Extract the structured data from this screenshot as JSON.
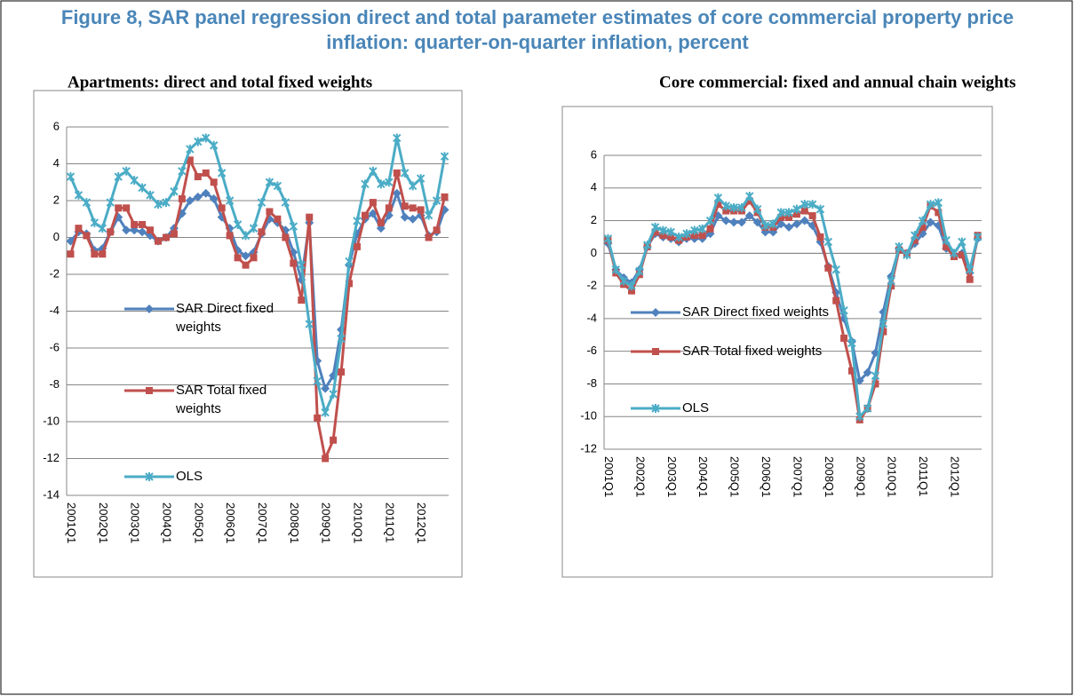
{
  "title": "Figure 8, SAR panel regression direct and total parameter estimates of core commercial property price inflation: quarter-on-quarter inflation, percent",
  "chart_data": [
    {
      "type": "line",
      "title": "Apartments: direct and total fixed weights",
      "categories": [
        "2001Q1",
        null,
        null,
        null,
        "2002Q1",
        null,
        null,
        null,
        "2003Q1",
        null,
        null,
        null,
        "2004Q1",
        null,
        null,
        null,
        "2005Q1",
        null,
        null,
        null,
        "2006Q1",
        null,
        null,
        null,
        "2007Q1",
        null,
        null,
        null,
        "2008Q1",
        null,
        null,
        null,
        "2009Q1",
        null,
        null,
        null,
        "2010Q1",
        null,
        null,
        null,
        "2011Q1",
        null,
        null,
        null,
        "2012Q1",
        null,
        null,
        null
      ],
      "ylim": [
        -14,
        6
      ],
      "yticks": [
        -14,
        -12,
        -10,
        -8,
        -6,
        -4,
        -2,
        0,
        2,
        4,
        6
      ],
      "grid": true,
      "series": [
        {
          "name": "SAR Direct fixed weights",
          "color": "#4f81bd",
          "marker": "diamond",
          "values": [
            -0.2,
            0.3,
            0.2,
            -0.7,
            -0.6,
            0.3,
            1.1,
            0.4,
            0.4,
            0.3,
            0.1,
            -0.2,
            0.0,
            0.5,
            1.3,
            2.0,
            2.2,
            2.4,
            2.1,
            1.1,
            0.5,
            -0.7,
            -1.0,
            -0.8,
            0.2,
            1.0,
            0.8,
            0.4,
            -0.8,
            -2.3,
            0.8,
            -6.7,
            -8.2,
            -7.5,
            -5.0,
            -1.5,
            0.2,
            1.0,
            1.3,
            0.5,
            1.2,
            2.4,
            1.1,
            1.0,
            1.2,
            0.1,
            0.3,
            1.5
          ]
        },
        {
          "name": "SAR Total fixed weights",
          "color": "#c0504d",
          "marker": "square",
          "values": [
            -0.9,
            0.5,
            0.1,
            -0.9,
            -0.9,
            0.3,
            1.6,
            1.6,
            0.7,
            0.7,
            0.4,
            -0.2,
            0.0,
            0.2,
            2.1,
            4.2,
            3.3,
            3.5,
            3.0,
            1.6,
            0.1,
            -1.1,
            -1.5,
            -1.1,
            0.3,
            1.4,
            1.0,
            0.0,
            -1.4,
            -3.4,
            1.1,
            -9.8,
            -12.0,
            -11.0,
            -7.3,
            -2.5,
            -0.5,
            1.2,
            1.9,
            0.8,
            1.6,
            3.5,
            1.7,
            1.6,
            1.5,
            0.0,
            0.4,
            2.2
          ]
        },
        {
          "name": "OLS",
          "color": "#4bacc6",
          "marker": "star",
          "values": [
            3.3,
            2.3,
            1.9,
            0.8,
            0.5,
            1.9,
            3.3,
            3.6,
            3.1,
            2.7,
            2.3,
            1.8,
            1.9,
            2.5,
            3.6,
            4.8,
            5.2,
            5.4,
            5.0,
            3.5,
            2.0,
            0.7,
            0.1,
            0.5,
            1.9,
            3.0,
            2.8,
            1.9,
            0.6,
            -1.5,
            -4.7,
            -7.8,
            -9.5,
            -8.5,
            -5.5,
            -1.3,
            0.9,
            2.9,
            3.6,
            2.9,
            3.0,
            5.4,
            3.5,
            2.8,
            3.2,
            1.2,
            2.0,
            4.4
          ]
        }
      ]
    },
    {
      "type": "line",
      "title": "Core commercial: fixed and annual chain weights",
      "categories": [
        "2001Q1",
        null,
        null,
        null,
        "2002Q1",
        null,
        null,
        null,
        "2003Q1",
        null,
        null,
        null,
        "2004Q1",
        null,
        null,
        null,
        "2005Q1",
        null,
        null,
        null,
        "2006Q1",
        null,
        null,
        null,
        "2007Q1",
        null,
        null,
        null,
        "2008Q1",
        null,
        null,
        null,
        "2009Q1",
        null,
        null,
        null,
        "2010Q1",
        null,
        null,
        null,
        "2011Q1",
        null,
        null,
        null,
        "2012Q1",
        null,
        null,
        null
      ],
      "ylim": [
        -12,
        6
      ],
      "yticks": [
        -12,
        -10,
        -8,
        -6,
        -4,
        -2,
        0,
        2,
        4,
        6
      ],
      "grid": true,
      "series": [
        {
          "name": "SAR Direct fixed weights",
          "color": "#4f81bd",
          "marker": "diamond",
          "values": [
            0.6,
            -1.0,
            -1.5,
            -1.8,
            -1.0,
            0.4,
            1.2,
            1.0,
            0.9,
            0.7,
            0.9,
            0.9,
            0.9,
            1.2,
            2.3,
            2.0,
            1.9,
            1.9,
            2.3,
            1.9,
            1.3,
            1.3,
            1.8,
            1.6,
            1.8,
            2.0,
            1.7,
            0.7,
            -0.8,
            -2.4,
            -4.0,
            -5.4,
            -7.8,
            -7.3,
            -6.1,
            -3.6,
            -1.4,
            0.3,
            0.0,
            0.6,
            1.2,
            1.9,
            1.7,
            0.3,
            -0.1,
            0.0,
            -1.2,
            0.9
          ]
        },
        {
          "name": "SAR Total fixed weights",
          "color": "#c0504d",
          "marker": "square",
          "values": [
            0.8,
            -1.2,
            -1.9,
            -2.3,
            -1.3,
            0.4,
            1.3,
            1.1,
            1.0,
            0.8,
            1.0,
            1.1,
            1.1,
            1.5,
            3.0,
            2.6,
            2.6,
            2.6,
            3.2,
            2.5,
            1.6,
            1.6,
            2.2,
            2.2,
            2.4,
            2.6,
            2.3,
            1.0,
            -0.9,
            -2.9,
            -5.2,
            -7.2,
            -10.2,
            -9.5,
            -8.0,
            -4.8,
            -2.0,
            0.2,
            0.0,
            0.8,
            1.6,
            2.9,
            2.5,
            0.4,
            -0.2,
            -0.1,
            -1.6,
            1.1
          ]
        },
        {
          "name": "OLS",
          "color": "#4bacc6",
          "marker": "star",
          "values": [
            0.9,
            -1.0,
            -1.7,
            -2.0,
            -1.1,
            0.5,
            1.6,
            1.4,
            1.3,
            1.0,
            1.2,
            1.4,
            1.5,
            2.0,
            3.4,
            2.9,
            2.8,
            2.8,
            3.5,
            2.7,
            1.7,
            1.8,
            2.5,
            2.5,
            2.7,
            3.0,
            3.0,
            2.7,
            0.7,
            -1.0,
            -3.5,
            -5.5,
            -10.0,
            -9.5,
            -7.5,
            -4.3,
            -1.7,
            0.4,
            -0.1,
            1.1,
            2.0,
            3.0,
            3.1,
            0.8,
            0.0,
            0.7,
            -1.0,
            1.0
          ]
        }
      ]
    }
  ]
}
